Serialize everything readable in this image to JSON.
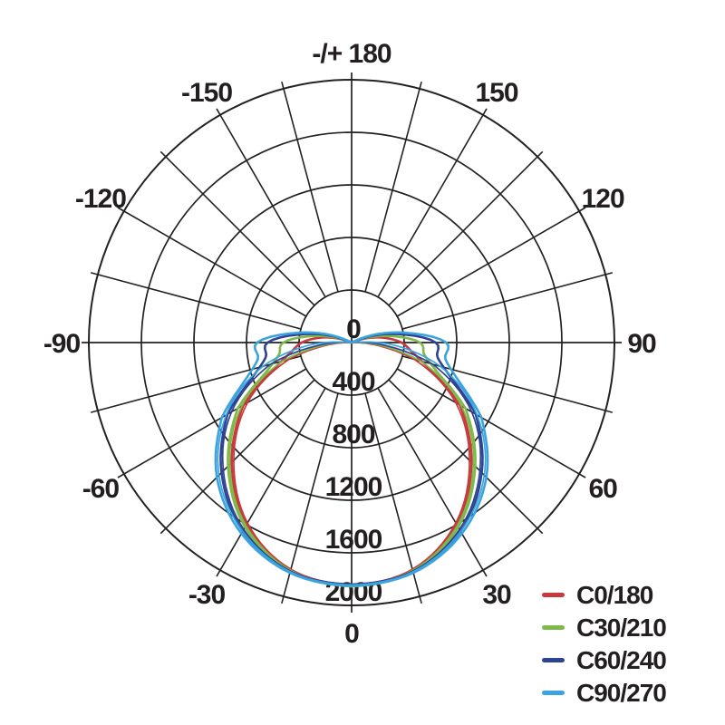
{
  "chart_data": {
    "type": "polar-line",
    "description": "Luminous intensity distribution curves (candela) by C-plane",
    "angular_unit": "deg",
    "radial_unit": "cd",
    "radial_max": 2000,
    "radial_ticks": [
      "0",
      "400",
      "800",
      "1200",
      "1600",
      "2000"
    ],
    "ray_step_deg": 15,
    "grid_color": "#222222",
    "text_color": "#231f20",
    "angle_labels": [
      {
        "value": 180,
        "text": "-/+ 180"
      },
      {
        "value": 150,
        "text": "150"
      },
      {
        "value": 120,
        "text": "120"
      },
      {
        "value": 90,
        "text": "90"
      },
      {
        "value": 60,
        "text": "60"
      },
      {
        "value": 30,
        "text": "30"
      },
      {
        "value": 0,
        "text": "0"
      },
      {
        "value": -30,
        "text": "-30"
      },
      {
        "value": -60,
        "text": "-60"
      },
      {
        "value": -90,
        "text": "-90"
      },
      {
        "value": -120,
        "text": "-120"
      },
      {
        "value": -150,
        "text": "-150"
      }
    ],
    "series": [
      {
        "name": "C0/180",
        "color": "#c8393c",
        "main": [
          [
            0,
            1850
          ],
          [
            15,
            1795
          ],
          [
            30,
            1600
          ],
          [
            45,
            1290
          ],
          [
            60,
            950
          ],
          [
            70,
            655
          ],
          [
            80,
            480
          ],
          [
            90,
            380
          ],
          [
            100,
            225
          ],
          [
            108,
            90
          ],
          [
            114,
            0
          ]
        ],
        "alt": [
          [
            0,
            1842
          ],
          [
            15,
            1786
          ],
          [
            30,
            1585
          ],
          [
            45,
            1268
          ],
          [
            60,
            915
          ],
          [
            75,
            495
          ],
          [
            85,
            165
          ],
          [
            93,
            0
          ]
        ]
      },
      {
        "name": "C30/210",
        "color": "#7fb94c",
        "main": [
          [
            0,
            1856
          ],
          [
            15,
            1802
          ],
          [
            30,
            1622
          ],
          [
            45,
            1330
          ],
          [
            60,
            1000
          ],
          [
            70,
            710
          ],
          [
            80,
            565
          ],
          [
            90,
            520
          ],
          [
            100,
            290
          ],
          [
            109,
            105
          ],
          [
            115,
            0
          ]
        ],
        "alt": [
          [
            0,
            1848
          ],
          [
            15,
            1794
          ],
          [
            30,
            1608
          ],
          [
            45,
            1310
          ],
          [
            60,
            965
          ],
          [
            75,
            545
          ],
          [
            85,
            200
          ],
          [
            94,
            0
          ]
        ]
      },
      {
        "name": "C60/240",
        "color": "#2e4492",
        "main": [
          [
            0,
            1846
          ],
          [
            15,
            1808
          ],
          [
            30,
            1658
          ],
          [
            45,
            1400
          ],
          [
            60,
            1090
          ],
          [
            70,
            815
          ],
          [
            80,
            665
          ],
          [
            90,
            640
          ],
          [
            100,
            370
          ],
          [
            110,
            130
          ],
          [
            116,
            0
          ]
        ],
        "alt": [
          [
            0,
            1838
          ],
          [
            15,
            1800
          ],
          [
            30,
            1642
          ],
          [
            45,
            1380
          ],
          [
            60,
            1055
          ],
          [
            75,
            640
          ],
          [
            85,
            260
          ],
          [
            96,
            0
          ]
        ]
      },
      {
        "name": "C90/270",
        "color": "#3ba4de",
        "main": [
          [
            0,
            1852
          ],
          [
            15,
            1814
          ],
          [
            30,
            1678
          ],
          [
            45,
            1450
          ],
          [
            60,
            1140
          ],
          [
            70,
            872
          ],
          [
            80,
            725
          ],
          [
            90,
            720
          ],
          [
            100,
            425
          ],
          [
            110,
            170
          ],
          [
            118,
            0
          ]
        ],
        "alt": [
          [
            0,
            1845
          ],
          [
            15,
            1806
          ],
          [
            30,
            1660
          ],
          [
            45,
            1428
          ],
          [
            60,
            1102
          ],
          [
            75,
            700
          ],
          [
            88,
            280
          ],
          [
            97,
            0
          ]
        ]
      }
    ],
    "legend": {
      "position": "bottom-right",
      "items": [
        "C0/180",
        "C30/210",
        "C60/240",
        "C90/270"
      ]
    }
  }
}
